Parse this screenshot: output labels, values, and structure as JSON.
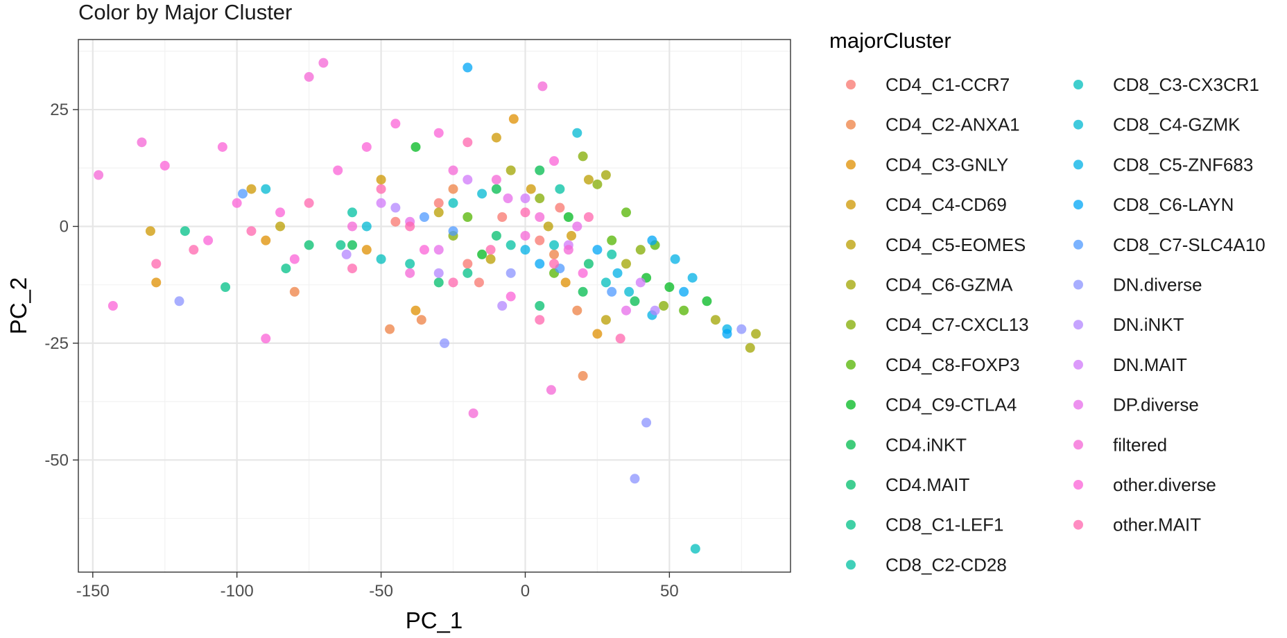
{
  "chart_data": {
    "type": "scatter",
    "title": "Color by Major Cluster",
    "xlabel": "PC_1",
    "ylabel": "PC_2",
    "xlim": [
      -155,
      92
    ],
    "ylim": [
      -74,
      40
    ],
    "x_ticks": [
      -150,
      -100,
      -50,
      0,
      50
    ],
    "y_ticks": [
      25,
      0,
      -25,
      -50
    ],
    "grid": true,
    "legend": {
      "title": "majorCluster",
      "placement": "right",
      "columns": 2
    },
    "series": [
      {
        "name": "CD4_C1-CCR7",
        "color": "#F8766D",
        "points": [
          [
            -30,
            5
          ],
          [
            -8,
            2
          ],
          [
            5,
            -3
          ],
          [
            -20,
            -8
          ],
          [
            12,
            4
          ],
          [
            -45,
            1
          ],
          [
            -16,
            -12
          ]
        ]
      },
      {
        "name": "CD4_C2-ANXA1",
        "color": "#EE8043",
        "points": [
          [
            -47,
            -22
          ],
          [
            20,
            -32
          ],
          [
            -80,
            -14
          ],
          [
            -25,
            8
          ],
          [
            10,
            -6
          ],
          [
            18,
            -18
          ],
          [
            -36,
            -20
          ]
        ]
      },
      {
        "name": "CD4_C3-GNLY",
        "color": "#DF8F00",
        "points": [
          [
            -128,
            -12
          ],
          [
            -90,
            -3
          ],
          [
            -4,
            23
          ],
          [
            -55,
            -5
          ],
          [
            -38,
            -18
          ],
          [
            14,
            -12
          ],
          [
            25,
            -23
          ]
        ]
      },
      {
        "name": "CD4_C4-CD69",
        "color": "#CE9700",
        "points": [
          [
            -130,
            -1
          ],
          [
            -95,
            8
          ],
          [
            -10,
            19
          ],
          [
            2,
            8
          ],
          [
            -50,
            10
          ],
          [
            16,
            -2
          ]
        ]
      },
      {
        "name": "CD4_C5-EOMES",
        "color": "#B99E00",
        "points": [
          [
            -85,
            0
          ],
          [
            -30,
            3
          ],
          [
            8,
            0
          ],
          [
            28,
            -20
          ],
          [
            22,
            10
          ],
          [
            -12,
            -7
          ]
        ]
      },
      {
        "name": "CD4_C6-GZMA",
        "color": "#A0A400",
        "points": [
          [
            80,
            -23
          ],
          [
            78,
            -26
          ],
          [
            66,
            -20
          ],
          [
            35,
            -8
          ],
          [
            28,
            11
          ],
          [
            -5,
            12
          ]
        ]
      },
      {
        "name": "CD4_C7-CXCL13",
        "color": "#81AB00",
        "points": [
          [
            20,
            15
          ],
          [
            25,
            9
          ],
          [
            40,
            -5
          ],
          [
            48,
            -17
          ],
          [
            -25,
            -2
          ],
          [
            5,
            6
          ]
        ]
      },
      {
        "name": "CD4_C8-FOXP3",
        "color": "#53B400",
        "points": [
          [
            35,
            3
          ],
          [
            45,
            -4
          ],
          [
            55,
            -18
          ],
          [
            30,
            -3
          ],
          [
            -20,
            2
          ],
          [
            10,
            -10
          ]
        ]
      },
      {
        "name": "CD4_C9-CTLA4",
        "color": "#00B81F",
        "points": [
          [
            -38,
            17
          ],
          [
            63,
            -16
          ],
          [
            50,
            -13
          ],
          [
            42,
            -11
          ],
          [
            15,
            2
          ],
          [
            -15,
            -6
          ]
        ]
      },
      {
        "name": "CD4.iNKT",
        "color": "#00BB4E",
        "points": [
          [
            5,
            12
          ],
          [
            -10,
            8
          ],
          [
            20,
            -14
          ],
          [
            -60,
            -4
          ],
          [
            38,
            -16
          ]
        ]
      },
      {
        "name": "CD4.MAIT",
        "color": "#00BE6C",
        "points": [
          [
            -30,
            -12
          ],
          [
            5,
            -17
          ],
          [
            -75,
            -4
          ],
          [
            -10,
            -2
          ],
          [
            22,
            -8
          ]
        ]
      },
      {
        "name": "CD8_C1-LEF1",
        "color": "#00C087",
        "points": [
          [
            -104,
            -13
          ],
          [
            -118,
            -1
          ],
          [
            -83,
            -9
          ],
          [
            -64,
            -4
          ],
          [
            -20,
            -10
          ]
        ]
      },
      {
        "name": "CD8_C2-CD28",
        "color": "#00C0A2",
        "points": [
          [
            -60,
            3
          ],
          [
            -40,
            -8
          ],
          [
            -5,
            -4
          ],
          [
            12,
            8
          ],
          [
            30,
            -6
          ]
        ]
      },
      {
        "name": "CD8_C3-CX3CR1",
        "color": "#00BEBC",
        "points": [
          [
            59,
            -69
          ],
          [
            -25,
            5
          ],
          [
            10,
            -4
          ],
          [
            -50,
            -7
          ],
          [
            28,
            -12
          ]
        ]
      },
      {
        "name": "CD8_C4-GZMK",
        "color": "#00B8D2",
        "points": [
          [
            -90,
            8
          ],
          [
            -55,
            0
          ],
          [
            -15,
            7
          ],
          [
            18,
            20
          ],
          [
            36,
            -14
          ]
        ]
      },
      {
        "name": "CD8_C5-ZNF683",
        "color": "#00B0E6",
        "points": [
          [
            58,
            -11
          ],
          [
            70,
            -22
          ],
          [
            52,
            -7
          ],
          [
            44,
            -19
          ],
          [
            32,
            -10
          ],
          [
            0,
            -5
          ]
        ]
      },
      {
        "name": "CD8_C6-LAYN",
        "color": "#00A5F6",
        "points": [
          [
            -20,
            34
          ],
          [
            70,
            -23
          ],
          [
            44,
            -3
          ],
          [
            55,
            -14
          ],
          [
            25,
            -5
          ],
          [
            5,
            -8
          ]
        ]
      },
      {
        "name": "CD8_C7-SLC4A10",
        "color": "#4F99FF",
        "points": [
          [
            -98,
            7
          ],
          [
            -25,
            -1
          ],
          [
            12,
            -9
          ],
          [
            -35,
            2
          ],
          [
            30,
            -14
          ]
        ]
      },
      {
        "name": "DN.diverse",
        "color": "#8B93FF",
        "points": [
          [
            42,
            -42
          ],
          [
            38,
            -54
          ],
          [
            -28,
            -25
          ],
          [
            -120,
            -16
          ],
          [
            75,
            -22
          ],
          [
            -5,
            -10
          ]
        ]
      },
      {
        "name": "DN.iNKT",
        "color": "#B385FF",
        "points": [
          [
            -62,
            -6
          ],
          [
            -45,
            4
          ],
          [
            -30,
            -10
          ],
          [
            -8,
            -17
          ],
          [
            45,
            -18
          ]
        ]
      },
      {
        "name": "DN.MAIT",
        "color": "#D078FA",
        "points": [
          [
            -50,
            5
          ],
          [
            -20,
            10
          ],
          [
            0,
            6
          ],
          [
            15,
            -4
          ],
          [
            40,
            -12
          ]
        ]
      },
      {
        "name": "DP.diverse",
        "color": "#E76CEA",
        "points": [
          [
            -40,
            1
          ],
          [
            -30,
            -5
          ],
          [
            -6,
            6
          ],
          [
            18,
            0
          ],
          [
            35,
            -18
          ]
        ]
      },
      {
        "name": "filtered",
        "color": "#F466D5",
        "points": [
          [
            -148,
            11
          ],
          [
            -133,
            18
          ],
          [
            -75,
            32
          ],
          [
            -70,
            35
          ],
          [
            6,
            30
          ],
          [
            -18,
            -40
          ],
          [
            9,
            -35
          ],
          [
            -40,
            -10
          ],
          [
            -60,
            0
          ],
          [
            -10,
            10
          ],
          [
            5,
            2
          ],
          [
            15,
            -5
          ],
          [
            -25,
            12
          ],
          [
            0,
            -2
          ]
        ]
      },
      {
        "name": "other.diverse",
        "color": "#FB61D7",
        "points": [
          [
            -143,
            -17
          ],
          [
            -105,
            17
          ],
          [
            -90,
            -24
          ],
          [
            -125,
            13
          ],
          [
            -100,
            5
          ],
          [
            -80,
            -7
          ],
          [
            -30,
            20
          ],
          [
            10,
            14
          ],
          [
            -5,
            -15
          ],
          [
            20,
            -10
          ],
          [
            -55,
            17
          ],
          [
            -45,
            22
          ],
          [
            -110,
            -3
          ],
          [
            -65,
            12
          ],
          [
            -85,
            3
          ],
          [
            -35,
            -5
          ]
        ]
      },
      {
        "name": "other.MAIT",
        "color": "#FF65AE",
        "points": [
          [
            -128,
            -8
          ],
          [
            -115,
            -5
          ],
          [
            -95,
            -1
          ],
          [
            -75,
            5
          ],
          [
            -60,
            -9
          ],
          [
            -50,
            8
          ],
          [
            -40,
            0
          ],
          [
            -25,
            -12
          ],
          [
            -12,
            -5
          ],
          [
            0,
            3
          ],
          [
            10,
            -8
          ],
          [
            22,
            2
          ],
          [
            33,
            -24
          ],
          [
            -20,
            18
          ],
          [
            5,
            -20
          ]
        ]
      }
    ]
  }
}
